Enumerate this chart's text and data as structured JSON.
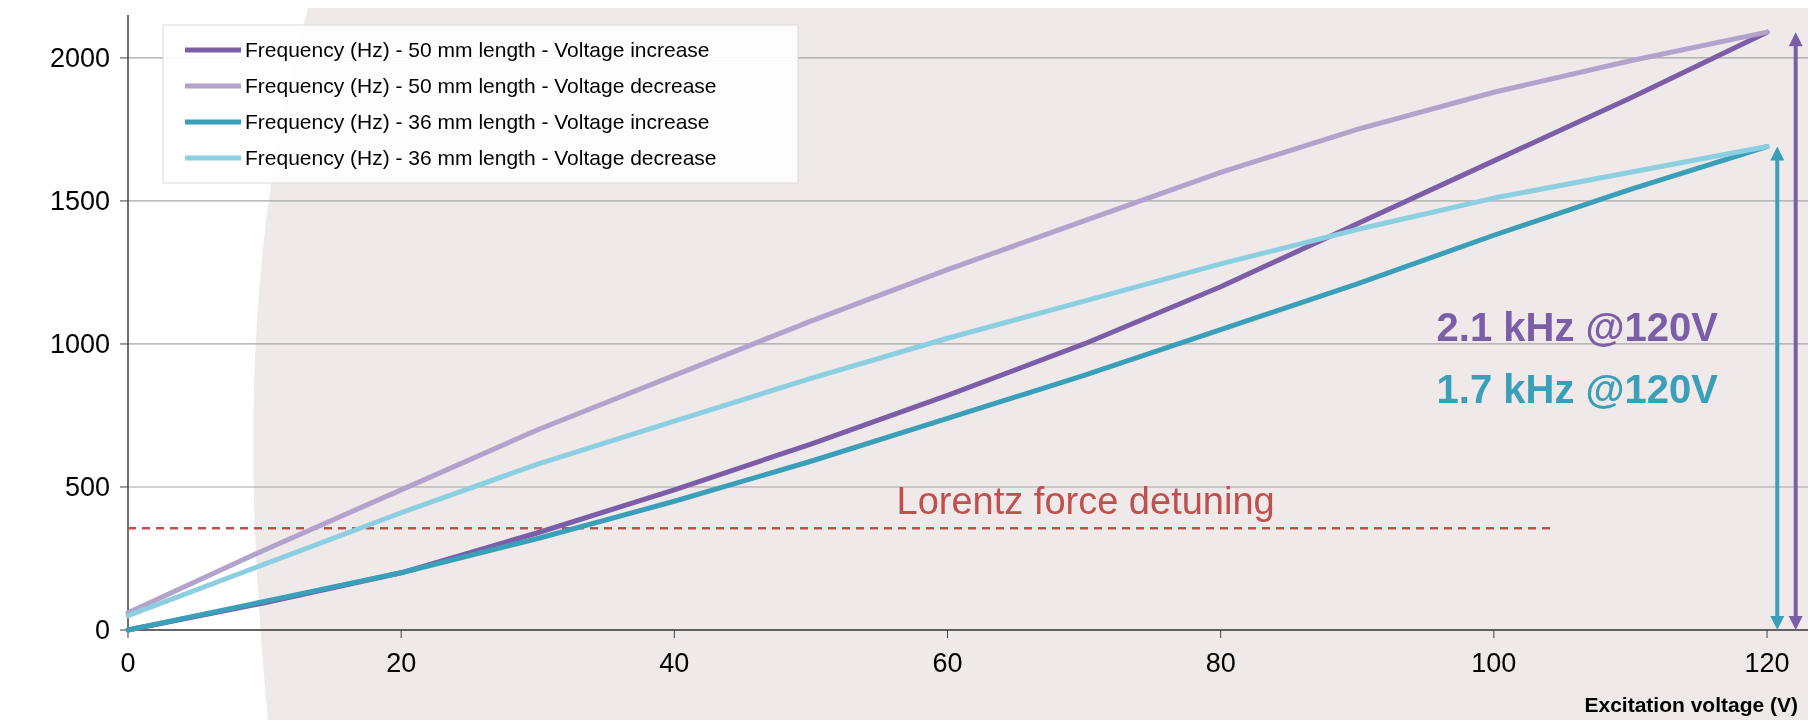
{
  "chart_data": {
    "type": "line",
    "xlabel": "Excitation voltage (V)",
    "x": [
      0,
      10,
      20,
      30,
      40,
      50,
      60,
      70,
      80,
      90,
      100,
      110,
      120
    ],
    "series": [
      {
        "name": "Frequency (Hz) - 50 mm length - Voltage increase",
        "color": "#7b5ea7",
        "values": [
          0,
          95,
          200,
          340,
          490,
          650,
          820,
          1000,
          1200,
          1420,
          1640,
          1860,
          2090
        ]
      },
      {
        "name": "Frequency (Hz) - 50 mm length - Voltage decrease",
        "color": "#b3a2cc",
        "values": [
          60,
          280,
          490,
          700,
          890,
          1080,
          1260,
          1430,
          1600,
          1750,
          1880,
          1990,
          2090
        ]
      },
      {
        "name": "Frequency (Hz) - 36 mm length - Voltage increase",
        "color": "#3a9fb8",
        "values": [
          0,
          100,
          200,
          320,
          450,
          590,
          740,
          890,
          1050,
          1210,
          1380,
          1540,
          1690
        ]
      },
      {
        "name": "Frequency (Hz) - 36 mm length - Voltage decrease",
        "color": "#8ccfe0",
        "values": [
          50,
          230,
          410,
          580,
          730,
          880,
          1020,
          1150,
          1280,
          1400,
          1510,
          1600,
          1690
        ]
      }
    ],
    "xlim": [
      0,
      123
    ],
    "xticks": [
      0,
      20,
      40,
      60,
      80,
      100,
      120
    ],
    "ylim": [
      0,
      2150
    ],
    "yticks": [
      0,
      500,
      1000,
      1500,
      2000
    ],
    "ref_lines": [
      {
        "axis": "y",
        "value": 356,
        "label": "Lorentz force detuning",
        "color": "#c0504d",
        "line_style": "dashed"
      }
    ],
    "annotations": [
      "2.1 kHz @120V",
      "1.7 kHz @120V"
    ],
    "grid": "y",
    "legend": "top left",
    "marker": "none",
    "line_style": "solid"
  }
}
